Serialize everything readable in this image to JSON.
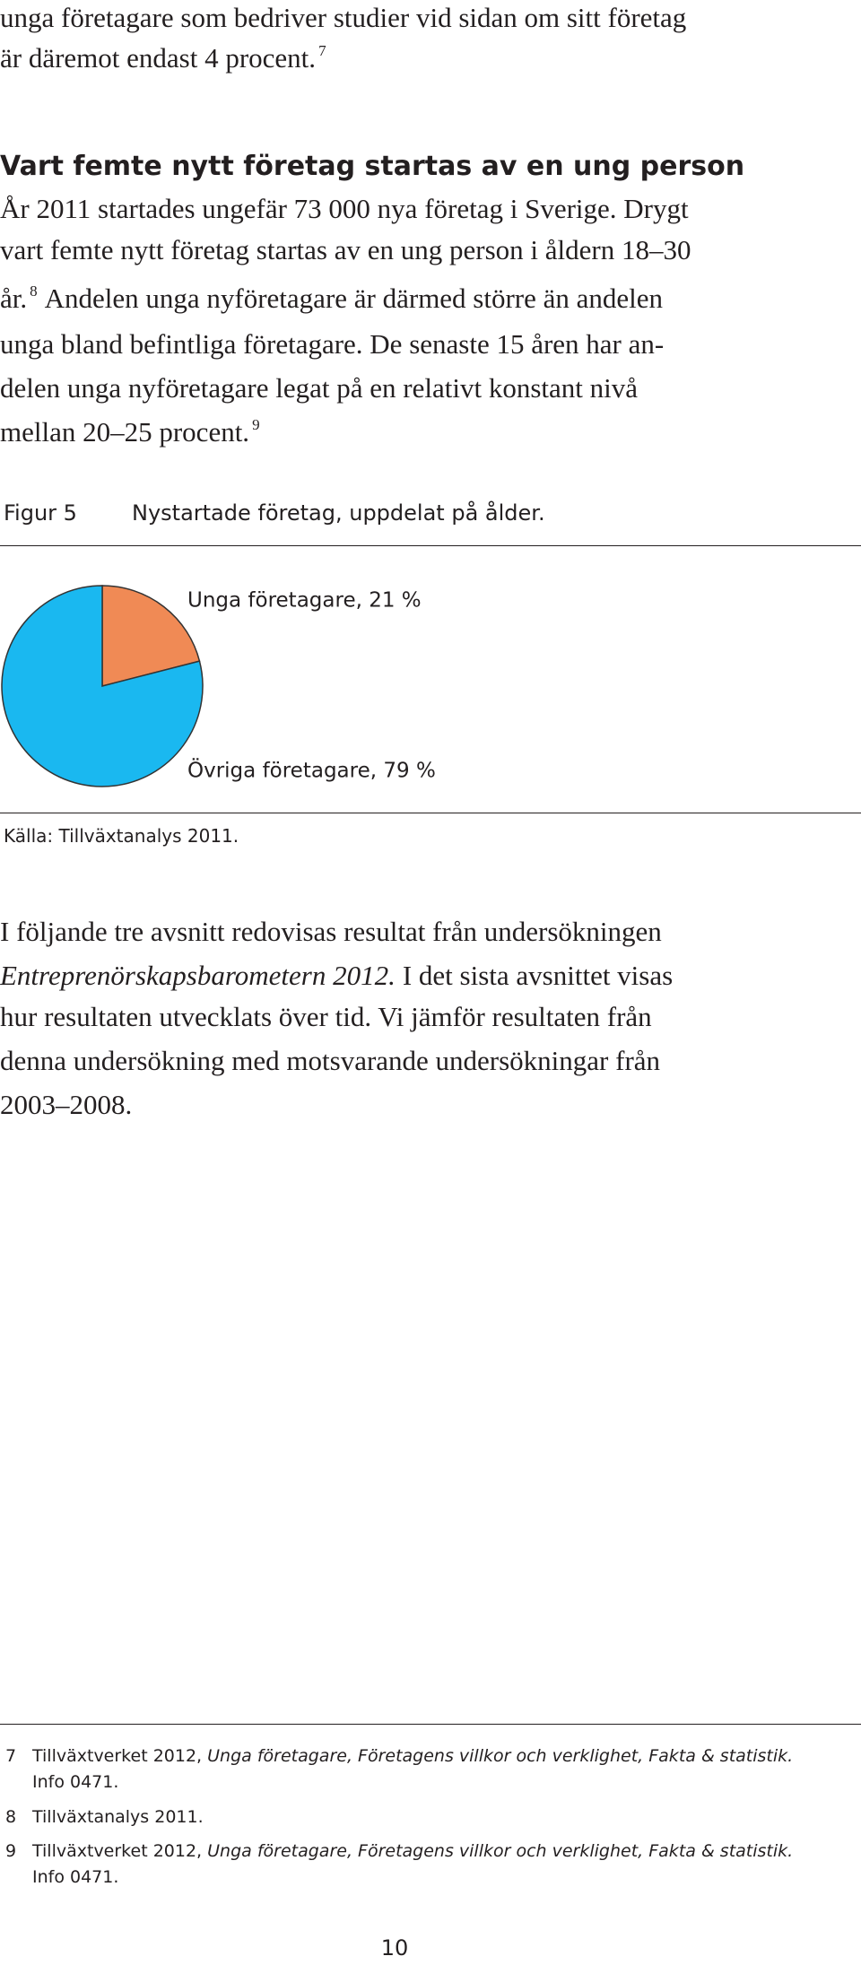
{
  "intro": {
    "lines": [
      "unga företagare som bedriver studier vid sidan om sitt företag",
      "är däremot endast 4 procent."
    ],
    "note": "7"
  },
  "section": {
    "heading": "Vart femte nytt företag startas av en ung person",
    "lines": [
      "År 2011 startades ungefär 73 000 nya företag i Sverige. Drygt",
      "vart femte nytt företag startas av en ung person i åldern 18–30",
      "år.",
      "Andelen unga nyföretagare är därmed större än andelen",
      "unga bland befintliga företagare. De senaste 15 åren har an-",
      "delen unga nyföretagare legat på en relativt konstant nivå",
      "mellan 20–25 procent."
    ],
    "notes": [
      "8",
      "9"
    ]
  },
  "figure": {
    "label": "Figur 5",
    "caption": "Nystartade företag, uppdelat på ålder.",
    "source": "Källa: Tillväxtanalys 2011."
  },
  "chart_data": {
    "type": "pie",
    "values": [
      21,
      79
    ],
    "value_labels": [
      "Unga företagare, 21 %",
      "Övriga företagare, 79 %"
    ],
    "colors": [
      "#f08a55",
      "#1ab8f0"
    ]
  },
  "closing": {
    "lines": [
      "I följande tre avsnitt redovisas resultat från undersökningen",
      "Entreprenörskapsbarometern 2012.",
      "I det sista avsnittet visas",
      "hur resultaten utvecklats över tid. Vi jämför resultaten från",
      "denna undersökning med motsvarande undersökningar från",
      "2003–2008."
    ]
  },
  "footnotes": [
    {
      "number": "7",
      "text": "Tillväxtverket 2012,",
      "title": "Unga företagare, Företagens villkor och verklighet, Fakta & statistik.",
      "info": "Info 0471."
    },
    {
      "number": "8",
      "text": "Tillväxtanalys 2011."
    },
    {
      "number": "9",
      "text": "Tillväxtverket 2012,",
      "title": "Unga företagare, Företagens villkor och verklighet, Fakta & statistik.",
      "info": "Info 0471."
    }
  ],
  "page_number": "10"
}
